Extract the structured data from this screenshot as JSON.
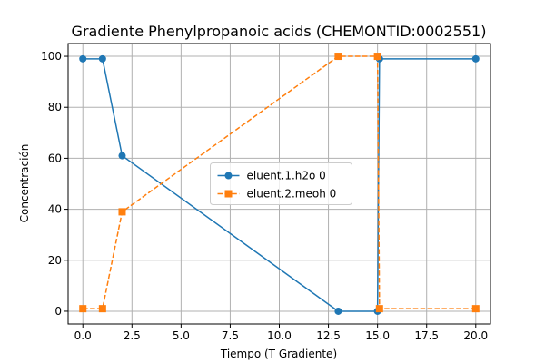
{
  "chart_data": {
    "type": "line",
    "title": "Gradiente Phenylpropanoic acids (CHEMONTID:0002551)",
    "xlabel": "Tiempo (T Gradiente)",
    "ylabel": "Concentración",
    "xlim": [
      -0.75,
      20.75
    ],
    "ylim": [
      -5,
      105
    ],
    "xticks": [
      0.0,
      2.5,
      5.0,
      7.5,
      10.0,
      12.5,
      15.0,
      17.5,
      20.0
    ],
    "xtick_labels": [
      "0.0",
      "2.5",
      "5.0",
      "7.5",
      "10.0",
      "12.5",
      "15.0",
      "17.5",
      "20.0"
    ],
    "yticks": [
      0,
      20,
      40,
      60,
      80,
      100
    ],
    "ytick_labels": [
      "0",
      "20",
      "40",
      "60",
      "80",
      "100"
    ],
    "grid": true,
    "legend_position": "center",
    "series": [
      {
        "name": "eluent.1.h2o 0",
        "color": "#1f77b4",
        "line_style": "solid",
        "marker": "circle",
        "x": [
          0,
          1,
          2,
          13,
          15,
          15.1,
          20
        ],
        "y": [
          99,
          99,
          61,
          0,
          0,
          99,
          99
        ]
      },
      {
        "name": "eluent.2.meoh 0",
        "color": "#ff7f0e",
        "line_style": "dashed",
        "marker": "square",
        "x": [
          0,
          1,
          2,
          13,
          15,
          15.1,
          20
        ],
        "y": [
          1,
          1,
          39,
          100,
          100,
          1,
          1
        ]
      }
    ]
  }
}
